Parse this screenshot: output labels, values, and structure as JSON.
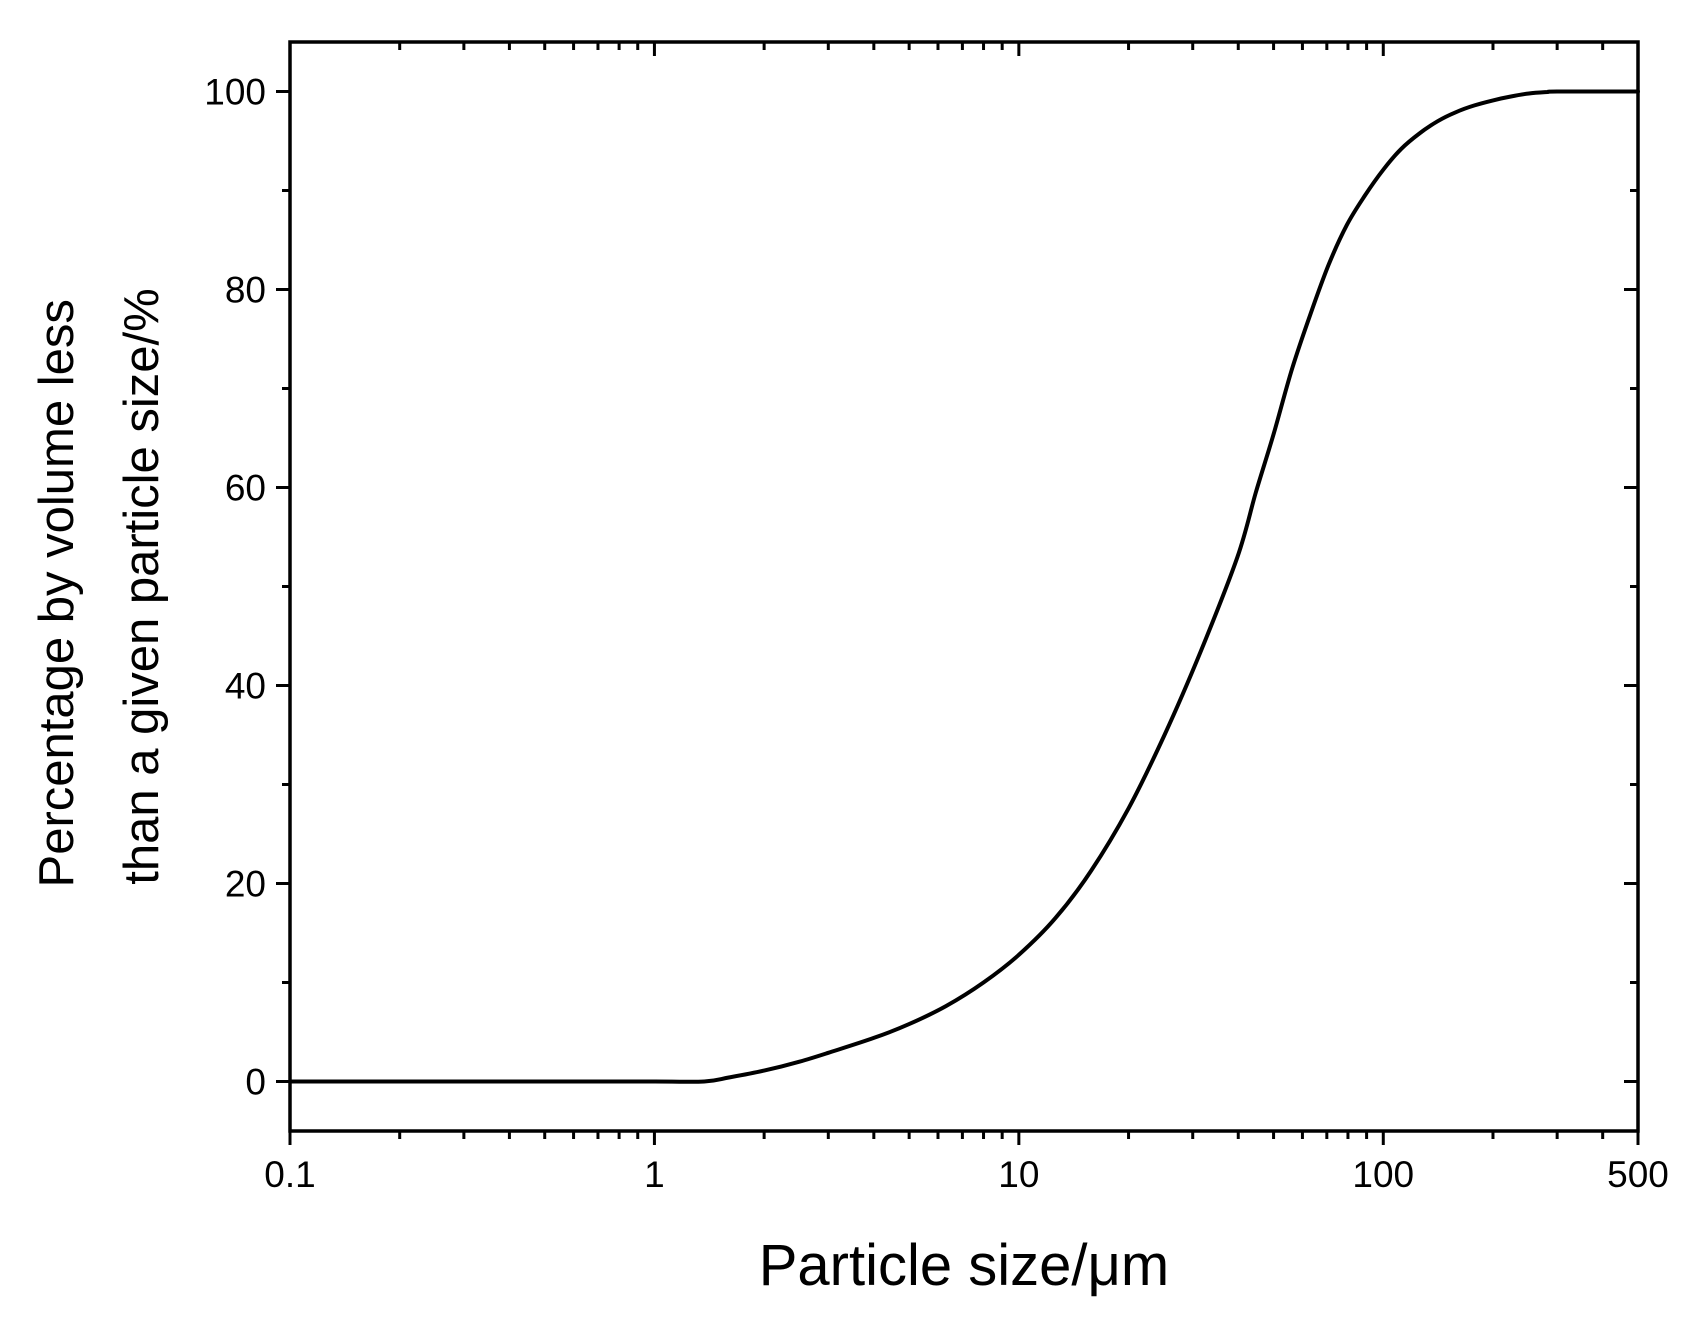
{
  "chart_data": {
    "type": "line",
    "xlabel": "Particle size/μm",
    "ylabel_lines": [
      "Percentage by volume less",
      "than a given particle size/%"
    ],
    "x_scale": "log",
    "xlim": [
      0.1,
      500
    ],
    "ylim": [
      -5,
      105
    ],
    "x_ticks": [
      {
        "value": 0.1,
        "label": "0.1"
      },
      {
        "value": 1,
        "label": "1"
      },
      {
        "value": 10,
        "label": "10"
      },
      {
        "value": 100,
        "label": "100"
      },
      {
        "value": 500,
        "label": "500"
      }
    ],
    "y_ticks": [
      {
        "value": 0,
        "label": "0"
      },
      {
        "value": 20,
        "label": "20"
      },
      {
        "value": 40,
        "label": "40"
      },
      {
        "value": 60,
        "label": "60"
      },
      {
        "value": 80,
        "label": "80"
      },
      {
        "value": 100,
        "label": "100"
      }
    ],
    "y_minor_ticks": [
      10,
      30,
      50,
      70,
      90
    ],
    "grid": false,
    "series": [
      {
        "color": "#000000",
        "x": [
          0.1,
          0.5,
          1.0,
          1.37,
          1.6,
          2.0,
          2.5,
          3.0,
          4.0,
          5.0,
          6.3,
          8.0,
          10.0,
          12.6,
          15.8,
          20.0,
          25.1,
          31.6,
          39.8,
          44.7,
          50.1,
          56.2,
          63.1,
          70.8,
          79.4,
          89.1,
          100,
          112,
          126,
          141,
          158,
          178,
          200,
          224,
          251,
          282,
          300,
          500
        ],
        "y": [
          0,
          0,
          0,
          0,
          0.4,
          1.1,
          2.0,
          2.9,
          4.4,
          5.8,
          7.6,
          10.0,
          12.8,
          16.5,
          21.3,
          27.6,
          35.0,
          43.5,
          53.0,
          59.5,
          65.5,
          72.0,
          77.5,
          82.5,
          86.5,
          89.5,
          92.1,
          94.2,
          95.8,
          97.0,
          97.9,
          98.6,
          99.1,
          99.5,
          99.8,
          99.95,
          100,
          100
        ]
      }
    ]
  }
}
